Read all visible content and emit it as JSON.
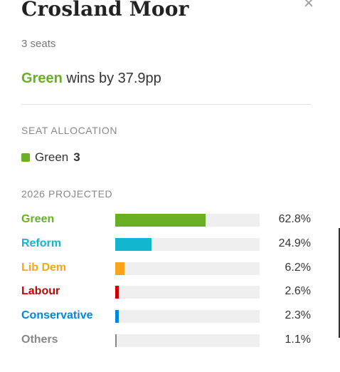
{
  "ward": {
    "title": "Crosland Moor",
    "seats_text": "3 seats",
    "close_symbol": "×"
  },
  "result": {
    "winner_party": "Green",
    "winner_color": "#6ab023",
    "margin_text": "wins by 37.9pp"
  },
  "seat_allocation": {
    "heading": "SEAT ALLOCATION",
    "items": [
      {
        "party": "Green",
        "seats": "3",
        "color": "#6ab023"
      }
    ]
  },
  "projection": {
    "heading": "2026 PROJECTED",
    "rows": [
      {
        "party": "Green",
        "value": "62.8%",
        "share": 62.8,
        "color": "#6ab023"
      },
      {
        "party": "Reform",
        "value": "24.9%",
        "share": 24.9,
        "color": "#12b6cf"
      },
      {
        "party": "Lib Dem",
        "value": "6.2%",
        "share": 6.2,
        "color": "#faa61a"
      },
      {
        "party": "Labour",
        "value": "2.6%",
        "share": 2.6,
        "color": "#c70000"
      },
      {
        "party": "Conservative",
        "value": "2.3%",
        "share": 2.3,
        "color": "#0087dc"
      },
      {
        "party": "Others",
        "value": "1.1%",
        "share": 1.1,
        "color": "#888888"
      }
    ]
  }
}
